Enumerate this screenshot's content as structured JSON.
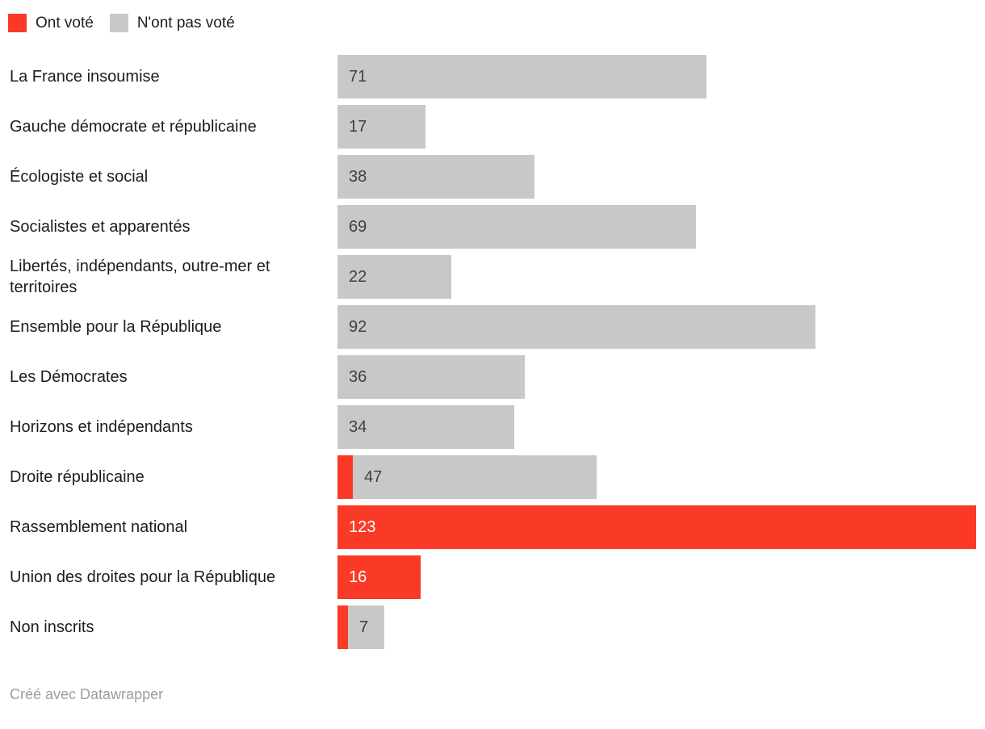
{
  "legend": {
    "items": [
      {
        "label": "Ont voté",
        "color": "#fa3a26"
      },
      {
        "label": "N'ont pas voté",
        "color": "#c8c8c8"
      }
    ]
  },
  "chart_data": {
    "type": "bar",
    "orientation": "horizontal",
    "stacked": true,
    "axis_visible": false,
    "legend_position": "top-left",
    "xlim": [
      0,
      123
    ],
    "categories": [
      "La France insoumise",
      "Gauche démocrate et républicaine",
      "Écologiste et social",
      "Socialistes et apparentés",
      "Libertés, indépendants, outre-mer et territoires",
      "Ensemble pour la République",
      "Les Démocrates",
      "Horizons et indépendants",
      "Droite républicaine",
      "Rassemblement national",
      "Union des droites pour la République",
      "Non inscrits"
    ],
    "series": [
      {
        "name": "Ont voté",
        "color": "#fa3a26",
        "values": [
          0,
          0,
          0,
          0,
          0,
          0,
          0,
          0,
          3,
          123,
          16,
          2
        ]
      },
      {
        "name": "N'ont pas voté",
        "color": "#c8c8c8",
        "values": [
          71,
          17,
          38,
          69,
          22,
          92,
          36,
          34,
          47,
          0,
          0,
          7
        ]
      }
    ],
    "value_labels": [
      "71",
      "17",
      "38",
      "69",
      "22",
      "92",
      "36",
      "34",
      "47",
      "123",
      "16",
      "7"
    ],
    "value_label_segment": [
      1,
      1,
      1,
      1,
      1,
      1,
      1,
      1,
      1,
      0,
      0,
      1
    ]
  },
  "colors": {
    "background": "#ffffff",
    "category_text": "#1d1d1d",
    "bar_value_text": "#404040",
    "bar_value_text_on_red": "#ffffff",
    "footer_text": "#9d9d9d"
  },
  "footer": {
    "credit": "Créé avec Datawrapper"
  }
}
